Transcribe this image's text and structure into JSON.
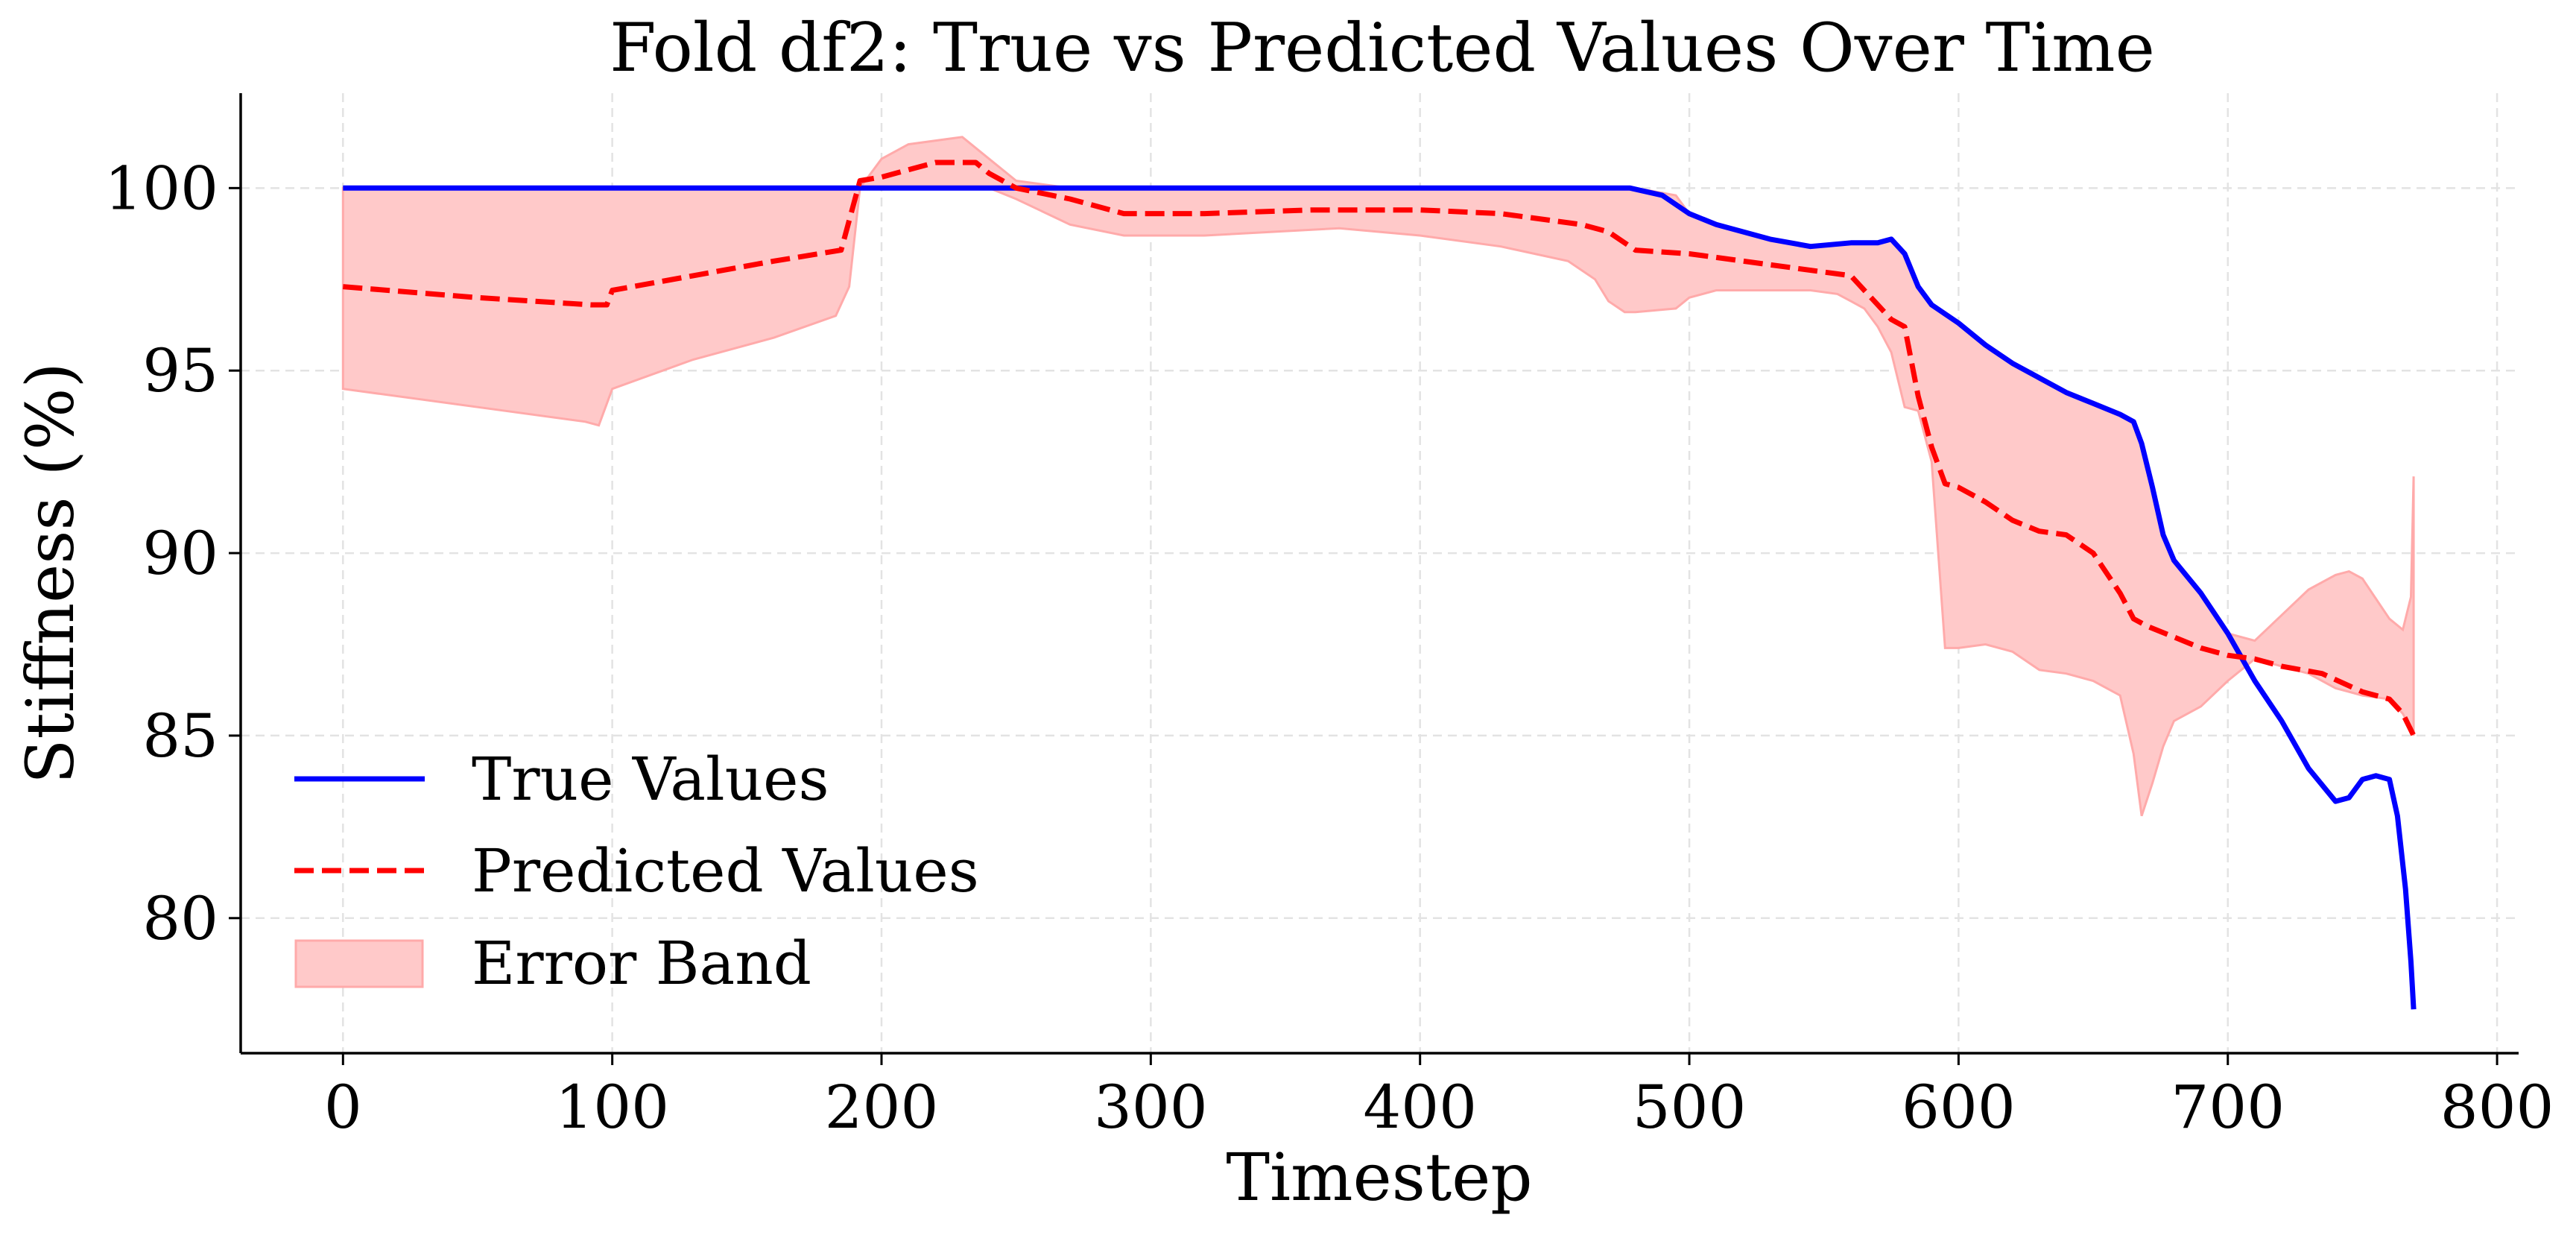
{
  "chart_data": {
    "type": "line",
    "title": "Fold df2: True vs Predicted Values Over Time",
    "xlabel": "Timestep",
    "ylabel": "Stiffness (%)",
    "xlim": [
      -38,
      808
    ],
    "ylim": [
      76.3,
      102.6
    ],
    "xticks": [
      0,
      100,
      200,
      300,
      400,
      500,
      600,
      700,
      800
    ],
    "xtick_labels": [
      "0",
      "100",
      "200",
      "300",
      "400",
      "500",
      "600",
      "700",
      "800"
    ],
    "yticks": [
      80,
      85,
      90,
      95,
      100
    ],
    "ytick_labels": [
      "80",
      "85",
      "90",
      "95",
      "100"
    ],
    "grid": true,
    "legend_position": "lower-left",
    "legend": [
      "True Values",
      "Predicted Values",
      "Error Band"
    ],
    "colors": {
      "true": "#0000ff",
      "predicted": "#ff0000",
      "band_fill": "#ffc9c9",
      "band_edge": "#ffaaaa"
    },
    "series": [
      {
        "name": "True Values",
        "style": "solid",
        "x": [
          0,
          100,
          200,
          300,
          400,
          478,
          490,
          500,
          510,
          530,
          545,
          560,
          570,
          575,
          580,
          585,
          590,
          600,
          610,
          620,
          630,
          640,
          650,
          660,
          665,
          668,
          672,
          676,
          680,
          690,
          700,
          710,
          720,
          730,
          740,
          745,
          750,
          755,
          760,
          763,
          766,
          768,
          769
        ],
        "y": [
          100,
          100,
          100,
          100,
          100,
          100,
          99.8,
          99.3,
          99.0,
          98.6,
          98.4,
          98.5,
          98.5,
          98.6,
          98.2,
          97.3,
          96.8,
          96.3,
          95.7,
          95.2,
          94.8,
          94.4,
          94.1,
          93.8,
          93.6,
          93.0,
          91.8,
          90.5,
          89.8,
          88.9,
          87.8,
          86.5,
          85.4,
          84.1,
          83.2,
          83.3,
          83.8,
          83.9,
          83.8,
          82.8,
          80.8,
          78.8,
          77.5
        ]
      },
      {
        "name": "Predicted Values",
        "style": "dashed",
        "x": [
          0,
          50,
          92,
          98,
          100,
          130,
          160,
          185,
          192,
          200,
          220,
          235,
          240,
          250,
          270,
          290,
          320,
          360,
          380,
          400,
          430,
          460,
          470,
          480,
          500,
          520,
          550,
          560,
          565,
          570,
          575,
          580,
          585,
          590,
          595,
          600,
          610,
          620,
          630,
          640,
          650,
          660,
          665,
          670,
          680,
          690,
          700,
          710,
          720,
          735,
          750,
          760,
          765,
          769
        ],
        "y": [
          97.3,
          97.0,
          96.8,
          96.8,
          97.2,
          97.6,
          98.0,
          98.3,
          100.2,
          100.3,
          100.7,
          100.7,
          100.4,
          100.0,
          99.7,
          99.3,
          99.3,
          99.4,
          99.4,
          99.4,
          99.3,
          99.0,
          98.8,
          98.3,
          98.2,
          98.0,
          97.7,
          97.6,
          97.2,
          96.8,
          96.4,
          96.2,
          94.3,
          92.9,
          91.9,
          91.8,
          91.4,
          90.9,
          90.6,
          90.5,
          90.0,
          88.9,
          88.2,
          88.0,
          87.7,
          87.4,
          87.2,
          87.1,
          86.9,
          86.7,
          86.2,
          86.0,
          85.6,
          85.0
        ]
      }
    ],
    "band": {
      "name": "Error Band",
      "x": [
        0,
        50,
        90,
        95,
        100,
        130,
        160,
        183,
        188,
        192,
        200,
        210,
        230,
        240,
        250,
        270,
        290,
        320,
        370,
        400,
        430,
        455,
        465,
        470,
        476,
        480,
        495,
        500,
        510,
        530,
        545,
        555,
        560,
        565,
        570,
        575,
        580,
        585,
        590,
        595,
        600,
        610,
        620,
        630,
        640,
        650,
        660,
        665,
        668,
        672,
        676,
        680,
        690,
        700,
        710,
        720,
        730,
        740,
        745,
        750,
        760,
        765,
        768,
        769
      ],
      "upper": [
        100,
        100,
        100,
        100,
        100,
        100,
        100,
        100,
        100,
        100,
        100.8,
        101.2,
        101.4,
        100.8,
        100.2,
        100,
        100,
        100,
        100,
        100,
        100,
        100,
        100,
        100,
        100,
        100,
        99.8,
        99.3,
        99.0,
        98.6,
        98.4,
        98.5,
        98.5,
        98.5,
        98.5,
        98.6,
        98.2,
        97.3,
        96.8,
        96.5,
        96.3,
        95.7,
        95.2,
        94.8,
        94.4,
        94.1,
        93.8,
        93.6,
        93.0,
        91.8,
        90.5,
        89.8,
        88.9,
        87.8,
        87.6,
        88.3,
        89.0,
        89.4,
        89.5,
        89.3,
        88.2,
        87.9,
        88.8,
        92.1
      ],
      "lower": [
        94.5,
        94.0,
        93.6,
        93.5,
        94.5,
        95.3,
        95.9,
        96.5,
        97.3,
        100,
        100,
        100,
        100,
        100,
        99.7,
        99.0,
        98.7,
        98.7,
        98.9,
        98.7,
        98.4,
        98.0,
        97.5,
        96.9,
        96.6,
        96.6,
        96.7,
        97.0,
        97.2,
        97.2,
        97.2,
        97.1,
        96.9,
        96.7,
        96.2,
        95.5,
        94.0,
        93.9,
        92.5,
        87.4,
        87.4,
        87.5,
        87.3,
        86.8,
        86.7,
        86.5,
        86.1,
        84.5,
        82.8,
        83.7,
        84.7,
        85.4,
        85.8,
        86.5,
        87.1,
        86.9,
        86.7,
        86.3,
        86.2,
        86.1,
        86.0,
        85.6,
        85.2,
        85.0
      ]
    }
  }
}
